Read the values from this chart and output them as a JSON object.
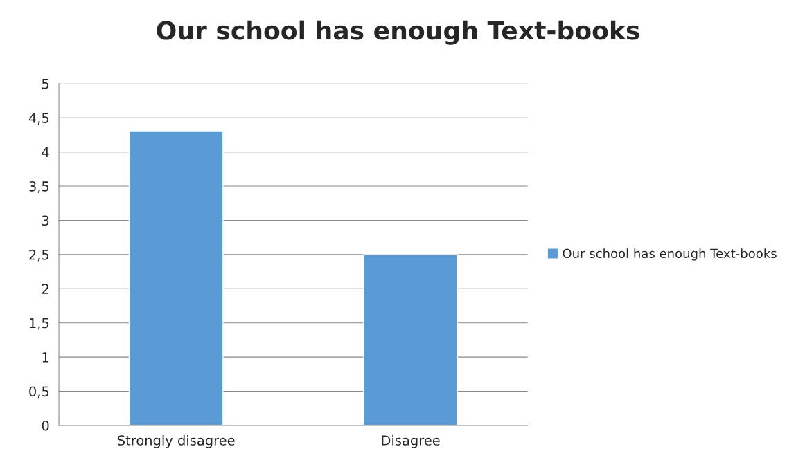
{
  "chart_data": {
    "type": "bar",
    "title": "Our school has enough Text-books",
    "categories": [
      "Strongly disagree",
      "Disagree"
    ],
    "series": [
      {
        "name": "Our school has enough Text-books",
        "color": "#5b9bd5",
        "values": [
          4.3,
          2.5
        ]
      }
    ],
    "ylim": [
      0,
      5
    ],
    "yticks": [
      0,
      {
        "value": 0.5,
        "label": "0,5"
      },
      1,
      {
        "value": 1.5,
        "label": "1,5"
      },
      2,
      {
        "value": 2.5,
        "label": "2,5"
      },
      3,
      {
        "value": 3.5,
        "label": "3,5"
      },
      4,
      {
        "value": 4.5,
        "label": "4,5"
      },
      5
    ],
    "grid": "y",
    "legend": "right"
  }
}
